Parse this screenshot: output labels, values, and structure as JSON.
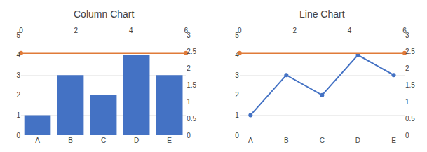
{
  "chart_data": [
    {
      "type": "bar",
      "title": "Column Chart",
      "categories": [
        "A",
        "B",
        "C",
        "D",
        "E"
      ],
      "values": [
        1,
        3,
        2,
        4,
        3
      ],
      "color": "#4472C4",
      "ylim": [
        0,
        5
      ],
      "yticks": [
        0,
        1,
        2,
        3,
        4,
        5
      ],
      "y2lim": [
        0,
        3
      ],
      "y2ticks": [
        0,
        0.5,
        1,
        1.5,
        2,
        2.5,
        3
      ],
      "xlim": [
        0,
        6
      ],
      "xticks": [
        0,
        2,
        4,
        6
      ],
      "grid": true,
      "reference_line": {
        "value": 4.1,
        "color": "#E07B39",
        "marker": "circle"
      }
    },
    {
      "type": "line",
      "title": "Line Chart",
      "categories": [
        "A",
        "B",
        "C",
        "D",
        "E"
      ],
      "values": [
        1,
        3,
        2,
        4,
        3
      ],
      "color": "#4472C4",
      "marker": "circle",
      "ylim": [
        0,
        5
      ],
      "yticks": [
        0,
        1,
        2,
        3,
        4,
        5
      ],
      "y2lim": [
        0,
        3
      ],
      "y2ticks": [
        0,
        0.5,
        1,
        1.5,
        2,
        2.5,
        3
      ],
      "xlim": [
        0,
        6
      ],
      "xticks": [
        0,
        2,
        4,
        6
      ],
      "grid": true,
      "reference_line": {
        "value": 4.1,
        "color": "#E07B39",
        "marker": "circle"
      }
    }
  ]
}
